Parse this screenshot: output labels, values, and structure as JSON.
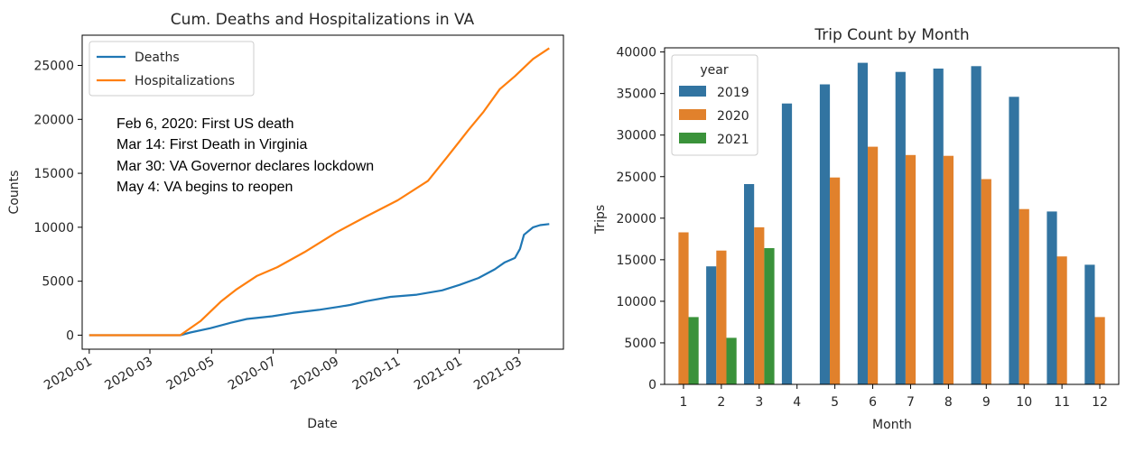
{
  "chart_data": [
    {
      "type": "line",
      "title": "Cum. Deaths and Hospitalizations in VA",
      "xlabel": "Date",
      "ylabel": "Counts",
      "xlim": [
        "2019-12-25",
        "2021-04-14"
      ],
      "ylim": [
        -1300,
        27800
      ],
      "yticks": [
        0,
        5000,
        10000,
        15000,
        20000,
        25000
      ],
      "ytick_labels": [
        "0",
        "5000",
        "10000",
        "15000",
        "20000",
        "25000"
      ],
      "xticks": [
        "2020-01-01",
        "2020-03-01",
        "2020-05-01",
        "2020-07-01",
        "2020-09-01",
        "2020-11-01",
        "2021-01-01",
        "2021-03-01"
      ],
      "xtick_labels": [
        "2020-01",
        "2020-03",
        "2020-05",
        "2020-07",
        "2020-09",
        "2020-11",
        "2021-01",
        "2021-03"
      ],
      "legend_position": "top-left",
      "grid": false,
      "annotations": [
        "Feb 6, 2020:  First US death",
        "Mar 14:  First Death in Virginia",
        "Mar 30:  VA Governor declares lockdown",
        "May 4:  VA begins to reopen"
      ],
      "series": [
        {
          "name": "Deaths",
          "color": "#1f77b4",
          "points": [
            [
              "2020-01-01",
              0
            ],
            [
              "2020-03-31",
              0
            ],
            [
              "2020-04-10",
              250
            ],
            [
              "2020-04-30",
              650
            ],
            [
              "2020-05-20",
              1150
            ],
            [
              "2020-06-05",
              1500
            ],
            [
              "2020-06-30",
              1750
            ],
            [
              "2020-07-20",
              2050
            ],
            [
              "2020-08-15",
              2350
            ],
            [
              "2020-09-05",
              2650
            ],
            [
              "2020-09-15",
              2800
            ],
            [
              "2020-10-01",
              3150
            ],
            [
              "2020-10-25",
              3550
            ],
            [
              "2020-11-20",
              3750
            ],
            [
              "2020-12-15",
              4150
            ],
            [
              "2021-01-01",
              4650
            ],
            [
              "2021-01-20",
              5300
            ],
            [
              "2021-02-05",
              6100
            ],
            [
              "2021-02-15",
              6750
            ],
            [
              "2021-02-25",
              7150
            ],
            [
              "2021-03-02",
              8000
            ],
            [
              "2021-03-06",
              9300
            ],
            [
              "2021-03-15",
              10000
            ],
            [
              "2021-03-22",
              10200
            ],
            [
              "2021-03-31",
              10300
            ]
          ]
        },
        {
          "name": "Hospitalizations",
          "color": "#ff7f0e",
          "points": [
            [
              "2020-01-01",
              0
            ],
            [
              "2020-03-31",
              0
            ],
            [
              "2020-04-20",
              1300
            ],
            [
              "2020-05-10",
              3100
            ],
            [
              "2020-05-25",
              4200
            ],
            [
              "2020-06-15",
              5500
            ],
            [
              "2020-07-05",
              6300
            ],
            [
              "2020-08-01",
              7700
            ],
            [
              "2020-09-01",
              9500
            ],
            [
              "2020-10-01",
              11000
            ],
            [
              "2020-11-01",
              12500
            ],
            [
              "2020-12-01",
              14300
            ],
            [
              "2020-12-20",
              16500
            ],
            [
              "2021-01-10",
              19000
            ],
            [
              "2021-01-25",
              20700
            ],
            [
              "2021-02-10",
              22800
            ],
            [
              "2021-02-25",
              24000
            ],
            [
              "2021-03-15",
              25600
            ],
            [
              "2021-03-31",
              26600
            ]
          ]
        }
      ]
    },
    {
      "type": "bar",
      "title": "Trip Count by Month",
      "xlabel": "Month",
      "ylabel": "Trips",
      "categories": [
        "1",
        "2",
        "3",
        "4",
        "5",
        "6",
        "7",
        "8",
        "9",
        "10",
        "11",
        "12"
      ],
      "ylim": [
        0,
        40500
      ],
      "yticks": [
        0,
        5000,
        10000,
        15000,
        20000,
        25000,
        30000,
        35000,
        40000
      ],
      "ytick_labels": [
        "0",
        "5000",
        "10000",
        "15000",
        "20000",
        "25000",
        "30000",
        "35000",
        "40000"
      ],
      "legend_title": "year",
      "legend_position": "top-left",
      "grid": false,
      "series": [
        {
          "name": "2019",
          "color": "#3274a1",
          "values": [
            null,
            14200,
            24100,
            33800,
            36100,
            38700,
            37600,
            38000,
            38300,
            34600,
            20800,
            14400
          ]
        },
        {
          "name": "2020",
          "color": "#e1812c",
          "values": [
            18300,
            16100,
            18900,
            null,
            24900,
            28600,
            27600,
            27500,
            24700,
            21100,
            15400,
            8100
          ]
        },
        {
          "name": "2021",
          "color": "#3a923a",
          "values": [
            8100,
            5600,
            16400,
            null,
            null,
            null,
            null,
            null,
            null,
            null,
            null,
            null
          ]
        }
      ]
    }
  ]
}
